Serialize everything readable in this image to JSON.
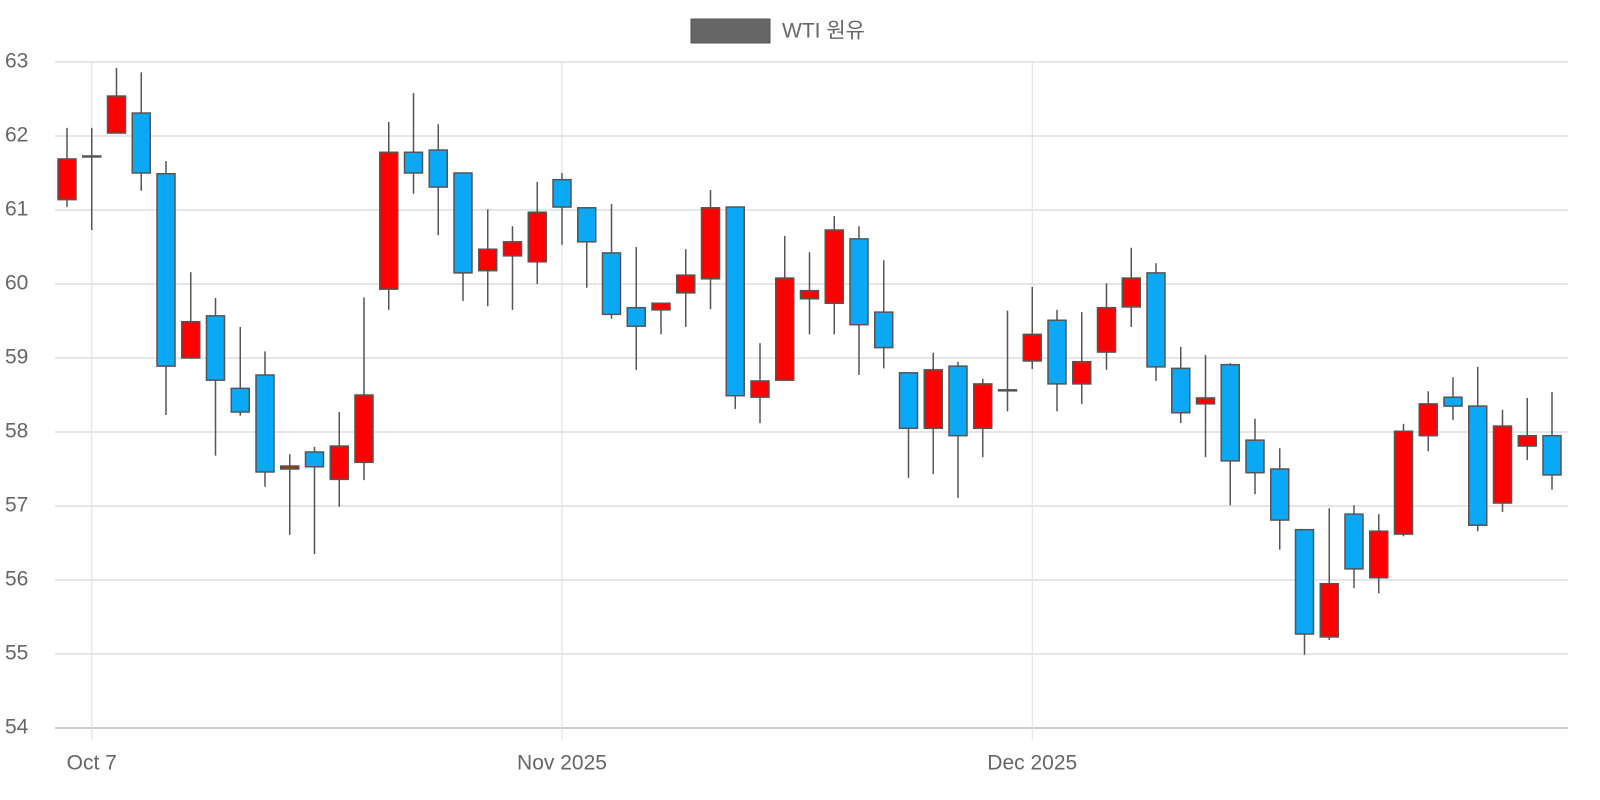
{
  "chart_data": {
    "type": "candlestick",
    "categories": [
      null,
      "Oct 7",
      null,
      null,
      null,
      null,
      null,
      null,
      null,
      null,
      null,
      null,
      null,
      null,
      null,
      null,
      null,
      null,
      null,
      null,
      "Nov 2025",
      null,
      null,
      null,
      null,
      null,
      null,
      null,
      null,
      null,
      null,
      null,
      null,
      null,
      null,
      null,
      null,
      null,
      null,
      "Dec 2025",
      null,
      null,
      null,
      null,
      null,
      null,
      null,
      null,
      null,
      null,
      null,
      null,
      null,
      null,
      null,
      null,
      null,
      null,
      null,
      null,
      null
    ],
    "series": [
      {
        "name": "WTI 원유",
        "color": "#666666",
        "up_color": "#ff0000",
        "down_color": "#0aa8f5",
        "open": [
          61.14,
          61.73,
          62.04,
          62.31,
          61.49,
          59.0,
          59.57,
          58.59,
          58.77,
          57.5,
          57.73,
          57.36,
          57.59,
          59.93,
          61.78,
          61.81,
          61.5,
          60.18,
          60.38,
          60.3,
          61.41,
          61.03,
          60.42,
          59.68,
          59.65,
          59.88,
          60.07,
          61.04,
          58.47,
          58.7,
          59.8,
          59.74,
          60.61,
          59.62,
          58.8,
          58.05,
          58.89,
          58.05,
          58.57,
          58.96,
          59.51,
          58.65,
          59.08,
          59.69,
          60.15,
          58.86,
          58.38,
          58.91,
          57.89,
          57.5,
          56.68,
          55.23,
          56.89,
          56.03,
          56.62,
          57.95,
          58.47,
          58.35,
          57.04,
          57.81,
          57.95
        ],
        "high": [
          62.11,
          62.11,
          62.92,
          62.86,
          61.66,
          60.16,
          59.81,
          59.42,
          59.09,
          57.7,
          57.8,
          58.27,
          59.82,
          62.19,
          62.58,
          62.16,
          61.5,
          61.01,
          60.78,
          61.38,
          61.5,
          61.03,
          61.08,
          60.5,
          59.74,
          60.47,
          61.27,
          61.04,
          59.2,
          60.65,
          60.43,
          60.92,
          60.78,
          60.32,
          58.8,
          59.07,
          58.95,
          58.72,
          59.64,
          59.96,
          59.65,
          59.62,
          60.01,
          60.49,
          60.28,
          59.15,
          59.04,
          58.93,
          58.18,
          57.78,
          56.68,
          56.97,
          57.01,
          56.89,
          58.11,
          58.55,
          58.74,
          58.88,
          58.3,
          58.46,
          58.54
        ],
        "low": [
          61.04,
          60.73,
          62.04,
          61.26,
          58.23,
          59.0,
          57.68,
          58.22,
          57.26,
          56.61,
          56.35,
          56.99,
          57.35,
          59.65,
          61.22,
          60.66,
          59.77,
          59.7,
          59.65,
          60.0,
          60.53,
          59.95,
          59.53,
          58.84,
          59.32,
          59.42,
          59.66,
          58.31,
          58.12,
          58.7,
          59.32,
          59.32,
          58.77,
          58.86,
          57.38,
          57.43,
          57.11,
          57.66,
          58.28,
          58.85,
          58.28,
          58.38,
          58.84,
          59.42,
          58.69,
          58.12,
          57.66,
          57.01,
          57.16,
          56.41,
          54.99,
          55.19,
          55.89,
          55.82,
          56.59,
          57.74,
          58.16,
          56.66,
          56.92,
          57.62,
          57.22
        ],
        "close": [
          61.69,
          61.73,
          62.54,
          61.5,
          58.89,
          59.49,
          58.7,
          58.27,
          57.46,
          57.54,
          57.53,
          57.81,
          58.5,
          61.78,
          61.5,
          61.31,
          60.15,
          60.47,
          60.57,
          60.97,
          61.04,
          60.57,
          59.59,
          59.43,
          59.74,
          60.12,
          61.03,
          58.49,
          58.69,
          60.08,
          59.91,
          60.73,
          59.45,
          59.14,
          58.05,
          58.84,
          57.95,
          58.65,
          58.57,
          59.32,
          58.65,
          58.95,
          59.68,
          60.08,
          58.88,
          58.26,
          58.46,
          57.61,
          57.45,
          56.81,
          55.27,
          55.95,
          56.15,
          56.66,
          58.01,
          58.38,
          58.35,
          56.74,
          58.08,
          57.95,
          57.42
        ]
      }
    ],
    "ylim": [
      54,
      63
    ],
    "yticks": [
      54,
      55,
      56,
      57,
      58,
      59,
      60,
      61,
      62,
      63
    ],
    "grid": true
  }
}
